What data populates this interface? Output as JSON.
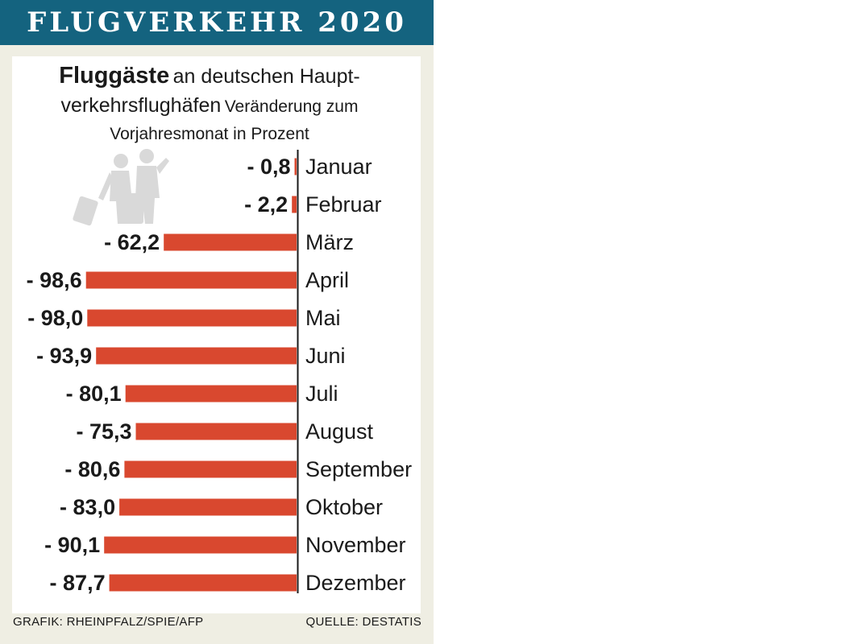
{
  "header": {
    "title": "FLUGVERKEHR 2020"
  },
  "title": {
    "bold": "Fluggäste",
    "line1": "an deutschen Haupt-",
    "line2_big": "verkehrsflughäfen",
    "line2_small": "Veränderung zum",
    "line3": "Vorjahresmonat in Prozent"
  },
  "footer": {
    "left": "GRAFIK: RHEINPFALZ/SPIE/AFP",
    "right": "QUELLE: DESTATIS"
  },
  "colors": {
    "bar": "#d9482f",
    "header": "#14637f",
    "background": "#efeee3",
    "icon": "#d9d9d9"
  },
  "icon": "travellers-with-luggage-icon",
  "chart_data": {
    "type": "bar",
    "orientation": "horizontal",
    "categories": [
      "Januar",
      "Februar",
      "März",
      "April",
      "Mai",
      "Juni",
      "Juli",
      "August",
      "September",
      "Oktober",
      "November",
      "Dezember"
    ],
    "values": [
      -0.8,
      -2.2,
      -62.2,
      -98.6,
      -98.0,
      -93.9,
      -80.1,
      -75.3,
      -80.6,
      -83.0,
      -90.1,
      -87.7
    ],
    "value_labels": [
      "- 0,8",
      "- 2,2",
      "- 62,2",
      "- 98,6",
      "- 98,0",
      "- 93,9",
      "- 80,1",
      "- 75,3",
      "- 80,6",
      "- 83,0",
      "- 90,1",
      "- 87,7"
    ],
    "xlim": [
      -100,
      0
    ],
    "grid": false,
    "legend": "none"
  }
}
